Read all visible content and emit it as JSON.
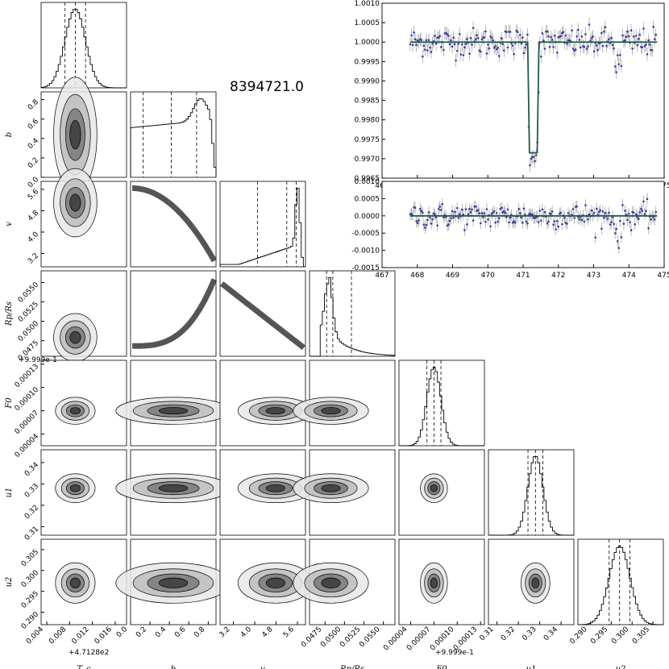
{
  "figure": {
    "title": "8394721.0",
    "offset_x": "+4.7128e2",
    "offset_f0_y": "+9.999e-1",
    "offset_f0_x": "+9.999e-1",
    "param_labels": [
      "T_c",
      "b",
      "v",
      "Rp/Rs",
      "F0",
      "u1",
      "u2"
    ]
  },
  "chart_data": [
    {
      "type": "corner",
      "name": "posterior corner plot",
      "parameters": [
        {
          "label": "T_c",
          "mean": 0.009,
          "sd": 0.0018,
          "range": [
            0.003,
            0.018
          ],
          "ticks": [
            "0.004",
            "0.008",
            "0.012",
            "0.016"
          ],
          "tick_values": [
            0.004,
            0.008,
            0.012,
            0.016
          ],
          "quantiles": [
            0.0072,
            0.009,
            0.0108
          ],
          "offset_text": "+4.7128e2"
        },
        {
          "label": "b",
          "range": [
            0.0,
            0.88
          ],
          "skew": "left",
          "ticks": [
            "0.0",
            "0.2",
            "0.4",
            "0.6",
            "0.8"
          ],
          "tick_values": [
            0,
            0.2,
            0.4,
            0.6,
            0.8
          ],
          "quantiles": [
            0.13,
            0.42,
            0.68
          ]
        },
        {
          "label": "v",
          "range": [
            2.7,
            5.9
          ],
          "skew": "left",
          "ticks": [
            "3.2",
            "4.0",
            "4.8",
            "5.6"
          ],
          "tick_values": [
            3.2,
            4.0,
            4.8,
            5.6
          ],
          "quantiles": [
            4.1,
            5.2,
            5.55
          ]
        },
        {
          "label": "Rp/Rs",
          "range": [
            0.0455,
            0.0565
          ],
          "skew": "right",
          "ticks": [
            "0.0475",
            "0.0500",
            "0.0525",
            "0.0550"
          ],
          "tick_values": [
            0.0475,
            0.05,
            0.0525,
            0.055
          ],
          "quantiles": [
            0.0477,
            0.0485,
            0.0509
          ]
        },
        {
          "label": "F0",
          "mean": 7e-05,
          "sd": 9e-06,
          "range": [
            2.5e-05,
            0.000135
          ],
          "ticks": [
            "0.00004",
            "0.00007",
            "0.00010",
            "0.00013"
          ],
          "tick_values": [
            4e-05,
            7e-05,
            0.0001,
            0.00013
          ],
          "quantiles": [
            6.1e-05,
            7e-05,
            7.9e-05
          ],
          "offset_text": "+9.999e-1"
        },
        {
          "label": "u1",
          "mean": 0.328,
          "sd": 0.0035,
          "range": [
            0.306,
            0.346
          ],
          "ticks": [
            "0.31",
            "0.32",
            "0.33",
            "0.34"
          ],
          "tick_values": [
            0.31,
            0.32,
            0.33,
            0.34
          ],
          "quantiles": [
            0.3245,
            0.328,
            0.3315
          ]
        },
        {
          "label": "u2",
          "mean": 0.297,
          "sd": 0.0025,
          "range": [
            0.287,
            0.3075
          ],
          "ticks": [
            "0.290",
            "0.295",
            "0.300",
            "0.305"
          ],
          "tick_values": [
            0.29,
            0.295,
            0.3,
            0.305
          ],
          "quantiles": [
            0.2945,
            0.297,
            0.2995
          ]
        }
      ],
      "ytick_labels": {
        "b": [
          "0.0",
          "0.2",
          "0.4",
          "0.6",
          "0.8"
        ],
        "v": [
          "3.2",
          "4.0",
          "4.8",
          "5.6"
        ],
        "Rp/Rs": [
          "0.0475",
          "0.0500",
          "0.0525",
          "0.0550"
        ],
        "F0": [
          "0.00004",
          "0.00007",
          "0.00010",
          "0.00013"
        ],
        "u1": [
          "0.31",
          "0.32",
          "0.33",
          "0.34"
        ],
        "u2": [
          "0.290",
          "0.295",
          "0.300",
          "0.305"
        ]
      }
    },
    {
      "type": "scatter",
      "name": "light curve with transit model",
      "xlim": [
        467,
        475
      ],
      "ylim": [
        0.9965,
        1.001
      ],
      "x_ticks": [
        "467",
        "468",
        "469",
        "470",
        "471",
        "472",
        "473",
        "474",
        "475"
      ],
      "y_ticks": [
        "0.9965",
        "0.9970",
        "0.9975",
        "0.9980",
        "0.9985",
        "0.9990",
        "0.9995",
        "1.0000",
        "1.0005",
        "1.0010"
      ],
      "data_x_range": [
        467.8,
        474.8
      ],
      "baseline": 1.0,
      "transit": {
        "start": 471.13,
        "end": 471.45,
        "depth": 0.00285
      },
      "point_scatter": 0.00018,
      "error_bar": 0.00017,
      "series_color": "#3a3aa0",
      "model_color": "#1f5a4a"
    },
    {
      "type": "scatter",
      "name": "residuals",
      "xlim": [
        467,
        475
      ],
      "ylim": [
        -0.0015,
        0.001
      ],
      "x_ticks": [
        "467",
        "468",
        "469",
        "470",
        "471",
        "472",
        "473",
        "474",
        "475"
      ],
      "y_ticks": [
        "-0.0015",
        "-0.0010",
        "-0.0005",
        "0.0000",
        "0.0005",
        "0.0010"
      ],
      "baseline": 0.0,
      "point_scatter": 0.00018,
      "error_bar": 0.00017,
      "series_color": "#3a3aa0",
      "model_color": "#1f5a4a"
    }
  ]
}
